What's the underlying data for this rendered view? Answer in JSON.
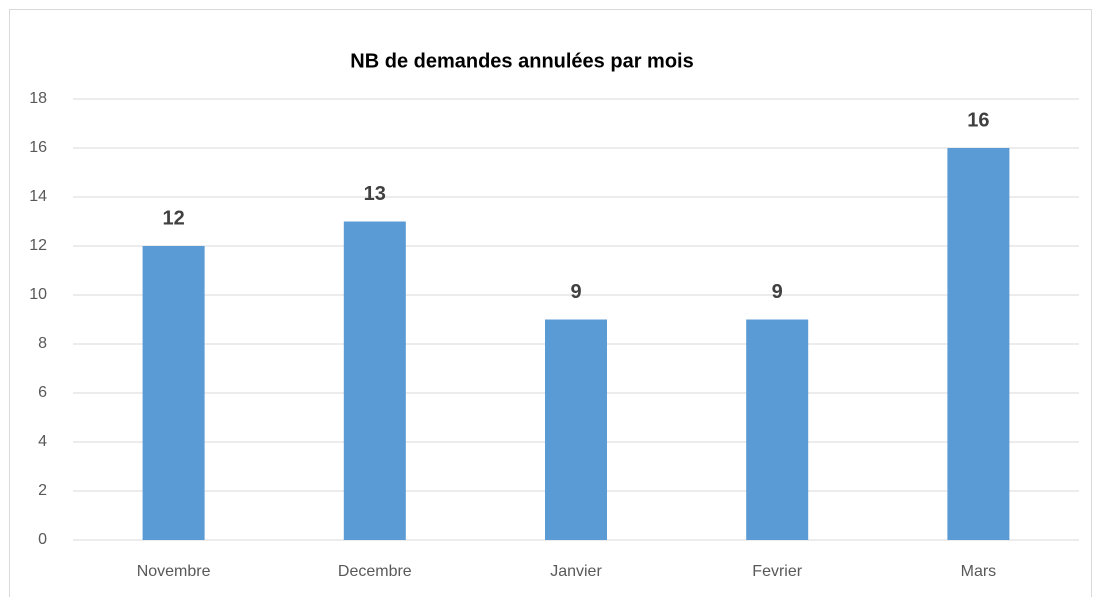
{
  "chart_data": {
    "type": "bar",
    "title": "NB de demandes annulées par mois",
    "categories": [
      "Novembre",
      "Decembre",
      "Janvier",
      "Fevrier",
      "Mars"
    ],
    "values": [
      12,
      13,
      9,
      9,
      16
    ],
    "color": "#5b9bd5",
    "ylim": [
      0,
      18
    ],
    "yticks": [
      0,
      2,
      4,
      6,
      8,
      10,
      12,
      14,
      16,
      18
    ],
    "grid": true,
    "data_labels": true
  }
}
